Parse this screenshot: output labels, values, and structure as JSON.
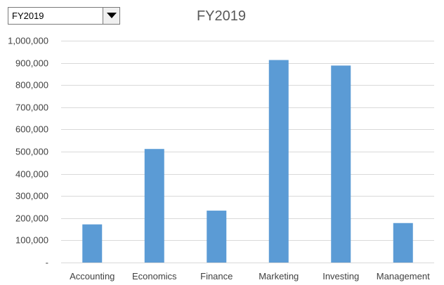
{
  "selector": {
    "value": "FY2019",
    "icon": "chevron-down-icon"
  },
  "chart_data": {
    "type": "bar",
    "title": "FY2019",
    "xlabel": "",
    "ylabel": "",
    "categories": [
      "Accounting",
      "Economics",
      "Finance",
      "Marketing",
      "Investing",
      "Management"
    ],
    "values": [
      172000,
      512000,
      234000,
      913000,
      888000,
      178000
    ],
    "ylim": [
      0,
      1000000
    ],
    "yticks": [
      0,
      100000,
      200000,
      300000,
      400000,
      500000,
      600000,
      700000,
      800000,
      900000,
      1000000
    ],
    "ytick_labels": [
      "-",
      "100,000",
      "200,000",
      "300,000",
      "400,000",
      "500,000",
      "600,000",
      "700,000",
      "800,000",
      "900,000",
      "1,000,000"
    ],
    "grid": true,
    "legend": "none",
    "colors": {
      "bar": "#5b9bd5",
      "grid": "#d9d9d9",
      "text": "#404040",
      "title": "#595959"
    }
  }
}
